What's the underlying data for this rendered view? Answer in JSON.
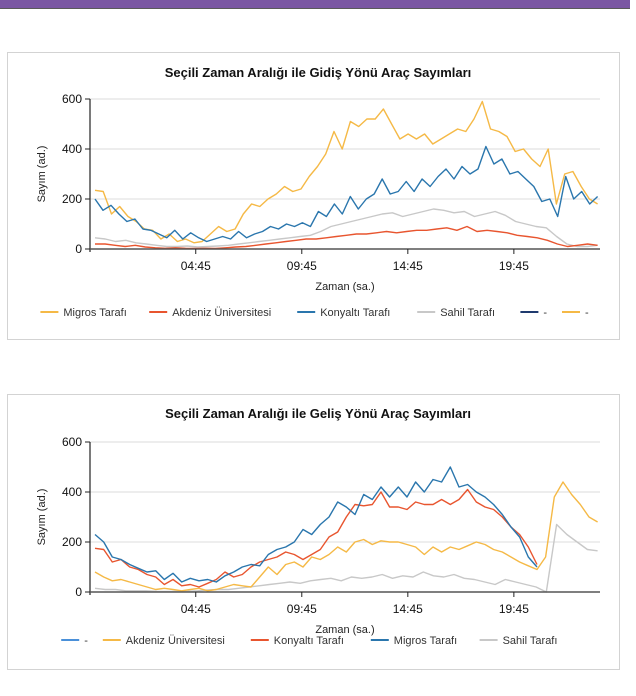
{
  "header": {
    "bar_color": "#7b57a3"
  },
  "chart_data": [
    {
      "type": "line",
      "title": "Seçili Zaman Aralığı ile Gidiş Yönü Araç Sayımları",
      "xlabel": "Zaman (sa.)",
      "ylabel": "Sayım (ad.)",
      "ylim": [
        0,
        600
      ],
      "yticks": [
        "0",
        "200",
        "400",
        "600"
      ],
      "ytick_values": [
        0,
        200,
        400,
        600
      ],
      "xticks": [
        "04:45",
        "09:45",
        "14:45",
        "19:45"
      ],
      "xtick_values": [
        4.75,
        9.75,
        14.75,
        19.75
      ],
      "xlim": [
        0,
        24
      ],
      "x_end": 23.7,
      "grid": true,
      "legend_position": "bottom",
      "series": [
        {
          "name": "Migros Tarafı",
          "color": "#f5b946",
          "values": [
            235,
            230,
            140,
            170,
            130,
            110,
            80,
            75,
            40,
            60,
            30,
            40,
            25,
            30,
            60,
            90,
            70,
            80,
            140,
            180,
            170,
            200,
            220,
            250,
            230,
            240,
            290,
            330,
            380,
            470,
            400,
            510,
            490,
            520,
            520,
            560,
            500,
            440,
            460,
            440,
            460,
            420,
            440,
            460,
            480,
            470,
            520,
            590,
            480,
            470,
            450,
            390,
            400,
            360,
            330,
            400,
            180,
            300,
            310,
            250,
            200,
            180
          ]
        },
        {
          "name": "Akdeniz Üniversitesi",
          "color": "#e8552f",
          "values": [
            20,
            20,
            15,
            10,
            15,
            8,
            5,
            3,
            5,
            3,
            2,
            3,
            2,
            5,
            8,
            10,
            15,
            20,
            25,
            30,
            35,
            40,
            40,
            45,
            50,
            55,
            60,
            60,
            65,
            70,
            65,
            70,
            75,
            75,
            80,
            85,
            75,
            90,
            70,
            75,
            70,
            65,
            55,
            50,
            45,
            35,
            20,
            10,
            15,
            20,
            15
          ]
        },
        {
          "name": "Konyaltı Tarafı",
          "color": "#2a76ad",
          "values": [
            200,
            155,
            175,
            140,
            110,
            120,
            80,
            75,
            60,
            45,
            75,
            40,
            65,
            45,
            30,
            40,
            50,
            40,
            70,
            45,
            60,
            70,
            90,
            80,
            100,
            90,
            105,
            90,
            150,
            130,
            180,
            140,
            210,
            160,
            200,
            220,
            280,
            220,
            230,
            270,
            230,
            280,
            250,
            290,
            320,
            280,
            330,
            300,
            320,
            410,
            340,
            360,
            300,
            310,
            280,
            250,
            190,
            200,
            130,
            290,
            200,
            230,
            180,
            210
          ]
        },
        {
          "name": "Sahil Tarafı",
          "color": "#c8c8c8",
          "values": [
            45,
            40,
            30,
            35,
            25,
            20,
            15,
            10,
            10,
            12,
            8,
            10,
            12,
            15,
            20,
            25,
            30,
            35,
            40,
            45,
            50,
            55,
            70,
            90,
            100,
            110,
            120,
            130,
            140,
            145,
            130,
            140,
            150,
            160,
            155,
            145,
            150,
            130,
            140,
            150,
            135,
            110,
            100,
            90,
            85,
            50,
            20,
            10,
            10,
            15
          ]
        },
        {
          "name": "-",
          "color": "#1f3a6e",
          "values": []
        },
        {
          "name": "-",
          "color": "#f5b946",
          "values": []
        }
      ]
    },
    {
      "type": "line",
      "title": "Seçili Zaman Aralığı ile Geliş Yönü Araç Sayımları",
      "xlabel": "Zaman (sa.)",
      "ylabel": "Sayım (ad.)",
      "ylim": [
        0,
        600
      ],
      "yticks": [
        "0",
        "200",
        "400",
        "600"
      ],
      "ytick_values": [
        0,
        200,
        400,
        600
      ],
      "xticks": [
        "04:45",
        "09:45",
        "14:45",
        "19:45"
      ],
      "xtick_values": [
        4.75,
        9.75,
        14.75,
        19.75
      ],
      "xlim": [
        0,
        24
      ],
      "x_end": 23.7,
      "grid": true,
      "legend_position": "bottom",
      "series": [
        {
          "name": "-",
          "color": "#4a90d9",
          "values": []
        },
        {
          "name": "Akdeniz Üniversitesi",
          "color": "#f5b946",
          "values": [
            80,
            60,
            45,
            50,
            40,
            30,
            20,
            10,
            15,
            10,
            5,
            10,
            15,
            5,
            10,
            20,
            30,
            25,
            20,
            60,
            100,
            70,
            110,
            120,
            100,
            140,
            130,
            150,
            180,
            160,
            200,
            210,
            190,
            205,
            200,
            200,
            190,
            180,
            150,
            180,
            160,
            180,
            170,
            185,
            200,
            190,
            170,
            160,
            140,
            120,
            105,
            90,
            140,
            380,
            440,
            390,
            350,
            300,
            280
          ]
        },
        {
          "name": "Konyaltı Tarafı",
          "color": "#e8552f",
          "values": [
            175,
            170,
            120,
            130,
            100,
            90,
            70,
            60,
            30,
            50,
            25,
            30,
            20,
            35,
            50,
            80,
            60,
            70,
            100,
            120,
            130,
            140,
            160,
            150,
            130,
            150,
            170,
            220,
            240,
            300,
            350,
            345,
            350,
            400,
            340,
            340,
            330,
            360,
            350,
            350,
            370,
            350,
            370,
            410,
            360,
            340,
            330,
            300,
            260,
            230,
            180,
            110,
            null,
            null,
            null,
            null,
            null,
            null,
            null
          ]
        },
        {
          "name": "Migros Tarafı",
          "color": "#2a76ad",
          "values": [
            230,
            200,
            140,
            130,
            110,
            95,
            80,
            85,
            50,
            75,
            40,
            55,
            45,
            50,
            40,
            65,
            80,
            100,
            110,
            105,
            150,
            170,
            180,
            200,
            250,
            230,
            270,
            300,
            360,
            340,
            310,
            390,
            370,
            420,
            380,
            420,
            380,
            440,
            400,
            450,
            440,
            500,
            420,
            430,
            400,
            380,
            350,
            310,
            260,
            220,
            140,
            100,
            null,
            null,
            null,
            null,
            null,
            null,
            null
          ]
        },
        {
          "name": "Sahil Tarafı",
          "color": "#c8c8c8",
          "values": [
            15,
            10,
            10,
            5,
            5,
            5,
            3,
            2,
            2,
            3,
            5,
            8,
            10,
            10,
            15,
            20,
            25,
            30,
            35,
            40,
            35,
            45,
            50,
            55,
            45,
            60,
            55,
            60,
            70,
            55,
            65,
            60,
            80,
            65,
            60,
            70,
            55,
            50,
            40,
            30,
            50,
            40,
            30,
            20,
            0,
            270,
            230,
            200,
            170,
            165
          ]
        }
      ]
    }
  ]
}
